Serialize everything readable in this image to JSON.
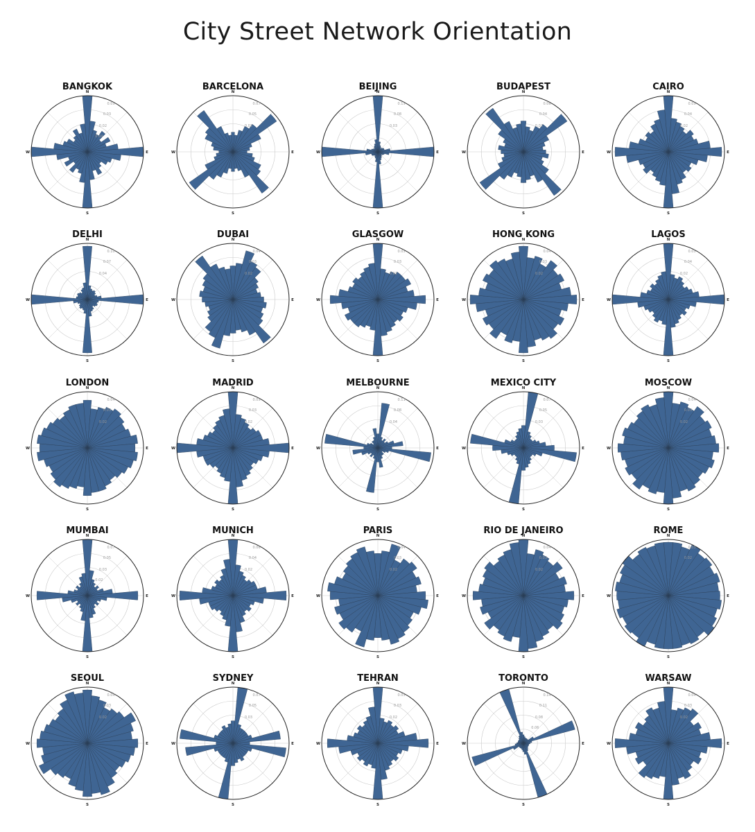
{
  "title": "City Street Network Orientation",
  "directions": [
    "N",
    "E",
    "S",
    "W"
  ],
  "colors": {
    "bar": "#3f6593",
    "bar_edge": "#2a3d55",
    "grid": "#c8c8c8",
    "outer": "#222222"
  },
  "chart_data": {
    "type": "polar-histogram",
    "bins": 36,
    "bin_width_deg": 10,
    "symmetric": true,
    "note_bins": "values start at 0deg (N) going clockwise; second half mirrors the first (street bearings are bidirectional)",
    "cities": [
      {
        "name": "BANGKOK",
        "ticks": [
          "0.05",
          "0.03",
          "0.02",
          "0.04"
        ],
        "half": [
          1.0,
          0.55,
          0.4,
          0.35,
          0.45,
          0.3,
          0.45,
          0.35,
          0.55,
          1.0,
          0.6,
          0.45,
          0.4,
          0.3,
          0.35,
          0.45,
          0.35,
          0.5
        ]
      },
      {
        "name": "BARCELONA",
        "ticks": [
          "0.07",
          "0.05",
          "0.03"
        ],
        "half": [
          0.35,
          0.3,
          0.4,
          0.5,
          0.6,
          0.95,
          0.55,
          0.35,
          0.3,
          0.25,
          0.35,
          0.4,
          0.55,
          0.6,
          0.9,
          0.5,
          0.35,
          0.3
        ]
      },
      {
        "name": "BEIJING",
        "ticks": [
          "0.15",
          "0.08",
          "0.03"
        ],
        "half": [
          1.0,
          0.18,
          0.12,
          0.1,
          0.08,
          0.1,
          0.12,
          0.12,
          0.22,
          1.0,
          0.2,
          0.12,
          0.1,
          0.08,
          0.1,
          0.12,
          0.15,
          0.22
        ]
      },
      {
        "name": "BUDAPEST",
        "ticks": [
          "0.06",
          "0.04",
          "0.02"
        ],
        "half": [
          0.55,
          0.45,
          0.4,
          0.5,
          0.6,
          0.95,
          0.5,
          0.4,
          0.35,
          0.4,
          0.45,
          0.35,
          0.4,
          0.55,
          0.95,
          0.6,
          0.45,
          0.5
        ]
      },
      {
        "name": "CAIRO",
        "ticks": [
          "0.05",
          "0.04",
          "0.02"
        ],
        "half": [
          1.0,
          0.6,
          0.55,
          0.5,
          0.45,
          0.55,
          0.5,
          0.55,
          0.75,
          0.95,
          0.7,
          0.55,
          0.45,
          0.5,
          0.45,
          0.55,
          0.6,
          0.75
        ]
      },
      {
        "name": "DELHI",
        "ticks": [
          "0.10",
          "0.07",
          "0.04"
        ],
        "half": [
          0.95,
          0.25,
          0.2,
          0.18,
          0.2,
          0.18,
          0.15,
          0.18,
          0.25,
          1.0,
          0.2,
          0.18,
          0.2,
          0.18,
          0.15,
          0.2,
          0.22,
          0.3
        ]
      },
      {
        "name": "DUBAI",
        "ticks": [
          "0.04",
          "0.03",
          "0.02"
        ],
        "half": [
          0.6,
          0.65,
          0.9,
          0.75,
          0.7,
          0.55,
          0.5,
          0.45,
          0.5,
          0.55,
          0.6,
          0.55,
          0.6,
          0.65,
          0.95,
          0.7,
          0.6,
          0.55
        ]
      },
      {
        "name": "GLASGOW",
        "ticks": [
          "0.05",
          "0.03",
          "0.02"
        ],
        "half": [
          1.0,
          0.55,
          0.5,
          0.55,
          0.6,
          0.6,
          0.65,
          0.55,
          0.65,
          0.85,
          0.7,
          0.55,
          0.5,
          0.55,
          0.5,
          0.55,
          0.6,
          0.65
        ]
      },
      {
        "name": "HONG KONG",
        "ticks": [
          "0.04",
          "0.03",
          "0.02"
        ],
        "half": [
          0.95,
          0.75,
          0.8,
          0.7,
          0.85,
          0.75,
          0.8,
          0.7,
          0.85,
          0.95,
          0.8,
          0.7,
          0.8,
          0.75,
          0.85,
          0.8,
          0.75,
          0.85
        ]
      },
      {
        "name": "LAGOS",
        "ticks": [
          "0.05",
          "0.04",
          "0.02"
        ],
        "half": [
          1.0,
          0.45,
          0.4,
          0.45,
          0.4,
          0.35,
          0.4,
          0.45,
          0.55,
          1.0,
          0.5,
          0.4,
          0.35,
          0.4,
          0.35,
          0.4,
          0.45,
          0.5
        ]
      },
      {
        "name": "LONDON",
        "ticks": [
          "0.04",
          "0.03",
          "0.02"
        ],
        "half": [
          0.85,
          0.7,
          0.75,
          0.8,
          0.85,
          0.8,
          0.75,
          0.8,
          0.9,
          0.85,
          0.9,
          0.85,
          0.8,
          0.75,
          0.7,
          0.75,
          0.8,
          0.8
        ]
      },
      {
        "name": "MADRID",
        "ticks": [
          "0.05",
          "0.03",
          "0.02"
        ],
        "half": [
          1.0,
          0.6,
          0.55,
          0.5,
          0.45,
          0.5,
          0.55,
          0.55,
          0.65,
          1.0,
          0.65,
          0.55,
          0.5,
          0.45,
          0.5,
          0.55,
          0.6,
          0.7
        ]
      },
      {
        "name": "MELBOURNE",
        "ticks": [
          "0.11",
          "0.08",
          "0.04"
        ],
        "half": [
          0.25,
          0.8,
          0.2,
          0.15,
          0.2,
          0.15,
          0.2,
          0.3,
          0.45,
          0.25,
          0.95,
          0.2,
          0.15,
          0.1,
          0.15,
          0.15,
          0.2,
          0.35
        ]
      },
      {
        "name": "MEXICO CITY",
        "ticks": [
          "0.07",
          "0.05",
          "0.03"
        ],
        "half": [
          0.4,
          1.0,
          0.3,
          0.25,
          0.2,
          0.2,
          0.25,
          0.3,
          0.4,
          0.55,
          0.95,
          0.35,
          0.25,
          0.2,
          0.2,
          0.25,
          0.3,
          0.35
        ]
      },
      {
        "name": "MOSCOW",
        "ticks": [
          "0.04",
          "0.03",
          "0.02"
        ],
        "half": [
          1.0,
          0.8,
          0.85,
          0.8,
          0.9,
          0.8,
          0.85,
          0.8,
          0.85,
          0.9,
          0.8,
          0.85,
          0.8,
          0.75,
          0.8,
          0.85,
          0.8,
          0.9
        ]
      },
      {
        "name": "MUMBAI",
        "ticks": [
          "0.07",
          "0.05",
          "0.03",
          "0.02"
        ],
        "half": [
          1.0,
          0.45,
          0.3,
          0.25,
          0.2,
          0.25,
          0.2,
          0.3,
          0.45,
          0.9,
          0.35,
          0.25,
          0.2,
          0.25,
          0.2,
          0.25,
          0.35,
          0.4
        ]
      },
      {
        "name": "MUNICH",
        "ticks": [
          "0.06",
          "0.04",
          "0.02"
        ],
        "half": [
          1.0,
          0.55,
          0.45,
          0.4,
          0.35,
          0.4,
          0.45,
          0.45,
          0.6,
          0.95,
          0.55,
          0.4,
          0.35,
          0.4,
          0.35,
          0.4,
          0.5,
          0.65
        ]
      },
      {
        "name": "PARIS",
        "ticks": [
          "0.04",
          "0.03",
          "0.02"
        ],
        "half": [
          0.75,
          0.8,
          0.95,
          0.7,
          0.8,
          0.85,
          0.75,
          0.8,
          0.7,
          0.85,
          0.9,
          0.8,
          0.7,
          0.75,
          0.8,
          0.85,
          0.9,
          0.8
        ]
      },
      {
        "name": "RIO DE JANEIRO",
        "ticks": [
          "0.04",
          "0.03",
          "0.02"
        ],
        "half": [
          1.0,
          0.75,
          0.85,
          0.8,
          0.75,
          0.85,
          0.7,
          0.8,
          0.75,
          0.9,
          0.8,
          0.75,
          0.8,
          0.85,
          0.75,
          0.8,
          0.85,
          0.95
        ]
      },
      {
        "name": "ROME",
        "ticks": [
          "0.03",
          "0.02"
        ],
        "half": [
          0.95,
          0.95,
          0.9,
          1.0,
          0.92,
          0.95,
          0.9,
          0.95,
          0.9,
          0.92,
          0.95,
          0.9,
          0.95,
          1.0,
          0.9,
          0.95,
          0.92,
          0.95
        ]
      },
      {
        "name": "SEOUL",
        "ticks": [
          "0.04",
          "0.03",
          "0.02"
        ],
        "half": [
          0.95,
          0.85,
          0.8,
          0.7,
          0.75,
          0.8,
          0.95,
          0.85,
          0.8,
          0.9,
          0.85,
          0.8,
          0.75,
          0.7,
          0.75,
          0.85,
          0.95,
          0.9
        ]
      },
      {
        "name": "SYDNEY",
        "ticks": [
          "0.07",
          "0.05",
          "0.03"
        ],
        "half": [
          0.4,
          1.0,
          0.35,
          0.3,
          0.3,
          0.3,
          0.3,
          0.35,
          0.85,
          0.3,
          0.95,
          0.35,
          0.3,
          0.3,
          0.3,
          0.35,
          0.3,
          0.35
        ]
      },
      {
        "name": "TEHRAN",
        "ticks": [
          "0.05",
          "0.03",
          "0.02"
        ],
        "half": [
          1.0,
          0.45,
          0.4,
          0.45,
          0.4,
          0.45,
          0.4,
          0.5,
          0.7,
          0.9,
          0.55,
          0.45,
          0.4,
          0.45,
          0.4,
          0.45,
          0.5,
          0.65
        ]
      },
      {
        "name": "TORONTO",
        "ticks": [
          "0.14",
          "0.11",
          "0.08",
          "0.06"
        ],
        "half": [
          0.15,
          0.12,
          0.1,
          0.1,
          0.1,
          0.1,
          0.2,
          0.95,
          0.15,
          0.12,
          0.1,
          0.1,
          0.1,
          0.1,
          0.12,
          0.15,
          1.0,
          0.2
        ]
      },
      {
        "name": "WARSAW",
        "ticks": [
          "0.04",
          "0.03",
          "0.02"
        ],
        "half": [
          1.0,
          0.6,
          0.65,
          0.7,
          0.75,
          0.55,
          0.65,
          0.6,
          0.75,
          0.95,
          0.7,
          0.6,
          0.65,
          0.55,
          0.6,
          0.7,
          0.65,
          0.75
        ]
      }
    ]
  }
}
